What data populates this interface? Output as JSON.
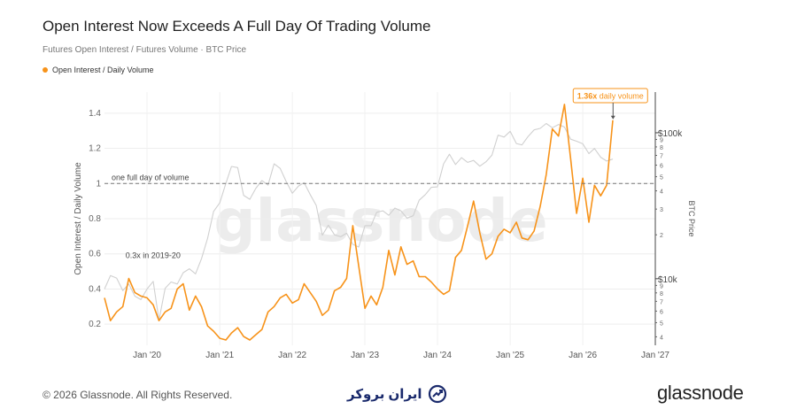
{
  "header": {
    "title": "Open Interest Now Exceeds A Full Day Of Trading Volume",
    "subtitle": "Futures Open Interest / Futures Volume · BTC Price"
  },
  "legend": {
    "label": "Open Interest / Daily Volume",
    "color": "#f7931a"
  },
  "footer": {
    "copyright": "© 2026 Glassnode. All Rights Reserved.",
    "partner_logo_text": "ایران بروکر",
    "brand": "glassnode"
  },
  "chart_data": {
    "type": "line",
    "watermark": "glassnode",
    "left_axis": {
      "label": "Open Interest / Daily Volume",
      "ylim": [
        0.08,
        1.52
      ],
      "ticks": [
        "0.2",
        "0.4",
        "0.6",
        "0.8",
        "1",
        "1.2",
        "1.4"
      ]
    },
    "right_axis": {
      "label": "BTC Price",
      "scale": "log",
      "ylim": [
        3500,
        190000
      ],
      "major_ticks": [
        {
          "value": 10000,
          "label": "$10k"
        },
        {
          "value": 100000,
          "label": "$100k"
        }
      ],
      "minor_ticks": [
        {
          "value": 4000,
          "label": "4"
        },
        {
          "value": 5000,
          "label": "5"
        },
        {
          "value": 6000,
          "label": "6"
        },
        {
          "value": 7000,
          "label": "7"
        },
        {
          "value": 8000,
          "label": "8"
        },
        {
          "value": 9000,
          "label": "9"
        },
        {
          "value": 20000,
          "label": "2"
        },
        {
          "value": 30000,
          "label": "3"
        },
        {
          "value": 40000,
          "label": "4"
        },
        {
          "value": 50000,
          "label": "5"
        },
        {
          "value": 60000,
          "label": "6"
        },
        {
          "value": 70000,
          "label": "7"
        },
        {
          "value": 80000,
          "label": "8"
        },
        {
          "value": 90000,
          "label": "9"
        }
      ]
    },
    "x_axis": {
      "range": [
        "2019-06-01",
        "2027-01-01"
      ],
      "ticks": [
        {
          "date": "2020-01-01",
          "label": "Jan '20"
        },
        {
          "date": "2021-01-01",
          "label": "Jan '21"
        },
        {
          "date": "2022-01-01",
          "label": "Jan '22"
        },
        {
          "date": "2023-01-01",
          "label": "Jan '23"
        },
        {
          "date": "2024-01-01",
          "label": "Jan '24"
        },
        {
          "date": "2025-01-01",
          "label": "Jan '25"
        },
        {
          "date": "2026-01-01",
          "label": "Jan '26"
        },
        {
          "date": "2027-01-01",
          "label": "Jan '27"
        }
      ]
    },
    "grid": true,
    "reference_line": {
      "value": 1,
      "label": "one full day of volume"
    },
    "annotations": [
      {
        "text": "0.3x in 2019-20",
        "date": "2019-09-15",
        "value": 0.575
      },
      {
        "text": "1.36x daily volume",
        "date": "2026-05-20",
        "value": 1.36
      }
    ],
    "series": [
      {
        "name": "Open Interest / Daily Volume",
        "axis": "left",
        "color": "#f7931a",
        "points": [
          [
            "2019-06-01",
            0.35
          ],
          [
            "2019-07-01",
            0.22
          ],
          [
            "2019-08-01",
            0.27
          ],
          [
            "2019-09-01",
            0.3
          ],
          [
            "2019-10-01",
            0.46
          ],
          [
            "2019-11-01",
            0.38
          ],
          [
            "2019-12-01",
            0.36
          ],
          [
            "2020-01-01",
            0.35
          ],
          [
            "2020-02-01",
            0.31
          ],
          [
            "2020-03-01",
            0.22
          ],
          [
            "2020-04-01",
            0.27
          ],
          [
            "2020-05-01",
            0.29
          ],
          [
            "2020-06-01",
            0.4
          ],
          [
            "2020-07-01",
            0.43
          ],
          [
            "2020-08-01",
            0.28
          ],
          [
            "2020-09-01",
            0.36
          ],
          [
            "2020-10-01",
            0.3
          ],
          [
            "2020-11-01",
            0.19
          ],
          [
            "2020-12-01",
            0.16
          ],
          [
            "2021-01-01",
            0.12
          ],
          [
            "2021-02-01",
            0.11
          ],
          [
            "2021-03-01",
            0.15
          ],
          [
            "2021-04-01",
            0.18
          ],
          [
            "2021-05-01",
            0.13
          ],
          [
            "2021-06-01",
            0.11
          ],
          [
            "2021-07-01",
            0.14
          ],
          [
            "2021-08-01",
            0.17
          ],
          [
            "2021-09-01",
            0.27
          ],
          [
            "2021-10-01",
            0.3
          ],
          [
            "2021-11-01",
            0.35
          ],
          [
            "2021-12-01",
            0.37
          ],
          [
            "2022-01-01",
            0.32
          ],
          [
            "2022-02-01",
            0.34
          ],
          [
            "2022-03-01",
            0.43
          ],
          [
            "2022-04-01",
            0.38
          ],
          [
            "2022-05-01",
            0.33
          ],
          [
            "2022-06-01",
            0.25
          ],
          [
            "2022-07-01",
            0.28
          ],
          [
            "2022-08-01",
            0.39
          ],
          [
            "2022-09-01",
            0.41
          ],
          [
            "2022-10-01",
            0.46
          ],
          [
            "2022-11-01",
            0.76
          ],
          [
            "2022-12-01",
            0.53
          ],
          [
            "2023-01-01",
            0.29
          ],
          [
            "2023-02-01",
            0.36
          ],
          [
            "2023-03-01",
            0.31
          ],
          [
            "2023-04-01",
            0.41
          ],
          [
            "2023-05-01",
            0.62
          ],
          [
            "2023-06-01",
            0.48
          ],
          [
            "2023-07-01",
            0.64
          ],
          [
            "2023-08-01",
            0.54
          ],
          [
            "2023-09-01",
            0.56
          ],
          [
            "2023-10-01",
            0.47
          ],
          [
            "2023-11-01",
            0.47
          ],
          [
            "2023-12-01",
            0.44
          ],
          [
            "2024-01-01",
            0.4
          ],
          [
            "2024-02-01",
            0.37
          ],
          [
            "2024-03-01",
            0.39
          ],
          [
            "2024-04-01",
            0.58
          ],
          [
            "2024-05-01",
            0.62
          ],
          [
            "2024-06-01",
            0.76
          ],
          [
            "2024-07-01",
            0.9
          ],
          [
            "2024-08-01",
            0.72
          ],
          [
            "2024-09-01",
            0.57
          ],
          [
            "2024-10-01",
            0.6
          ],
          [
            "2024-11-01",
            0.7
          ],
          [
            "2024-12-01",
            0.74
          ],
          [
            "2025-01-01",
            0.72
          ],
          [
            "2025-02-01",
            0.78
          ],
          [
            "2025-03-01",
            0.69
          ],
          [
            "2025-04-01",
            0.68
          ],
          [
            "2025-05-01",
            0.73
          ],
          [
            "2025-06-01",
            0.87
          ],
          [
            "2025-07-01",
            1.05
          ],
          [
            "2025-08-01",
            1.31
          ],
          [
            "2025-09-01",
            1.27
          ],
          [
            "2025-10-01",
            1.45
          ],
          [
            "2025-11-01",
            1.14
          ],
          [
            "2025-12-01",
            0.83
          ],
          [
            "2026-01-01",
            1.03
          ],
          [
            "2026-02-01",
            0.78
          ],
          [
            "2026-03-01",
            0.99
          ],
          [
            "2026-04-01",
            0.93
          ],
          [
            "2026-05-01",
            0.99
          ],
          [
            "2026-06-01",
            1.36
          ]
        ]
      },
      {
        "name": "BTC Price",
        "axis": "right",
        "color": "#d0d0d0",
        "points": [
          [
            "2019-06-01",
            8500
          ],
          [
            "2019-07-01",
            10500
          ],
          [
            "2019-08-01",
            10100
          ],
          [
            "2019-09-01",
            8300
          ],
          [
            "2019-10-01",
            9200
          ],
          [
            "2019-11-01",
            7600
          ],
          [
            "2019-12-01",
            7200
          ],
          [
            "2020-01-01",
            8500
          ],
          [
            "2020-02-01",
            9600
          ],
          [
            "2020-03-01",
            5200
          ],
          [
            "2020-04-01",
            8600
          ],
          [
            "2020-05-01",
            9500
          ],
          [
            "2020-06-01",
            9200
          ],
          [
            "2020-07-01",
            11000
          ],
          [
            "2020-08-01",
            11700
          ],
          [
            "2020-09-01",
            10800
          ],
          [
            "2020-10-01",
            13700
          ],
          [
            "2020-11-01",
            19000
          ],
          [
            "2020-12-01",
            28900
          ],
          [
            "2021-01-01",
            33100
          ],
          [
            "2021-02-01",
            45100
          ],
          [
            "2021-03-01",
            58800
          ],
          [
            "2021-04-01",
            57700
          ],
          [
            "2021-05-01",
            37300
          ],
          [
            "2021-06-01",
            35000
          ],
          [
            "2021-07-01",
            41500
          ],
          [
            "2021-08-01",
            47100
          ],
          [
            "2021-09-01",
            43800
          ],
          [
            "2021-10-01",
            61300
          ],
          [
            "2021-11-01",
            57000
          ],
          [
            "2021-12-01",
            46300
          ],
          [
            "2022-01-01",
            38500
          ],
          [
            "2022-02-01",
            43200
          ],
          [
            "2022-03-01",
            45500
          ],
          [
            "2022-04-01",
            37700
          ],
          [
            "2022-05-01",
            31800
          ],
          [
            "2022-06-01",
            19900
          ],
          [
            "2022-07-01",
            23300
          ],
          [
            "2022-08-01",
            20000
          ],
          [
            "2022-09-01",
            19400
          ],
          [
            "2022-10-01",
            20500
          ],
          [
            "2022-11-01",
            17200
          ],
          [
            "2022-12-01",
            16500
          ],
          [
            "2023-01-01",
            23100
          ],
          [
            "2023-02-01",
            23100
          ],
          [
            "2023-03-01",
            28500
          ],
          [
            "2023-04-01",
            29200
          ],
          [
            "2023-05-01",
            27200
          ],
          [
            "2023-06-01",
            30500
          ],
          [
            "2023-07-01",
            29200
          ],
          [
            "2023-08-01",
            26000
          ],
          [
            "2023-09-01",
            27000
          ],
          [
            "2023-10-01",
            34500
          ],
          [
            "2023-11-01",
            37700
          ],
          [
            "2023-12-01",
            42300
          ],
          [
            "2024-01-01",
            42600
          ],
          [
            "2024-02-01",
            61200
          ],
          [
            "2024-03-01",
            71300
          ],
          [
            "2024-04-01",
            60600
          ],
          [
            "2024-05-01",
            67500
          ],
          [
            "2024-06-01",
            62700
          ],
          [
            "2024-07-01",
            64600
          ],
          [
            "2024-08-01",
            59000
          ],
          [
            "2024-09-01",
            63300
          ],
          [
            "2024-10-01",
            70200
          ],
          [
            "2024-11-01",
            96400
          ],
          [
            "2024-12-01",
            93400
          ],
          [
            "2025-01-01",
            102400
          ],
          [
            "2025-02-01",
            84400
          ],
          [
            "2025-03-01",
            82500
          ],
          [
            "2025-04-01",
            94200
          ],
          [
            "2025-05-01",
            104600
          ],
          [
            "2025-06-01",
            107100
          ],
          [
            "2025-07-01",
            115800
          ],
          [
            "2025-08-01",
            108200
          ],
          [
            "2025-09-01",
            114000
          ],
          [
            "2025-10-01",
            109500
          ],
          [
            "2025-11-01",
            90400
          ],
          [
            "2025-12-01",
            87500
          ],
          [
            "2026-01-01",
            84000
          ],
          [
            "2026-02-01",
            72000
          ],
          [
            "2026-03-01",
            78000
          ],
          [
            "2026-04-01",
            68000
          ],
          [
            "2026-05-01",
            64000
          ],
          [
            "2026-06-01",
            66000
          ]
        ]
      }
    ]
  }
}
